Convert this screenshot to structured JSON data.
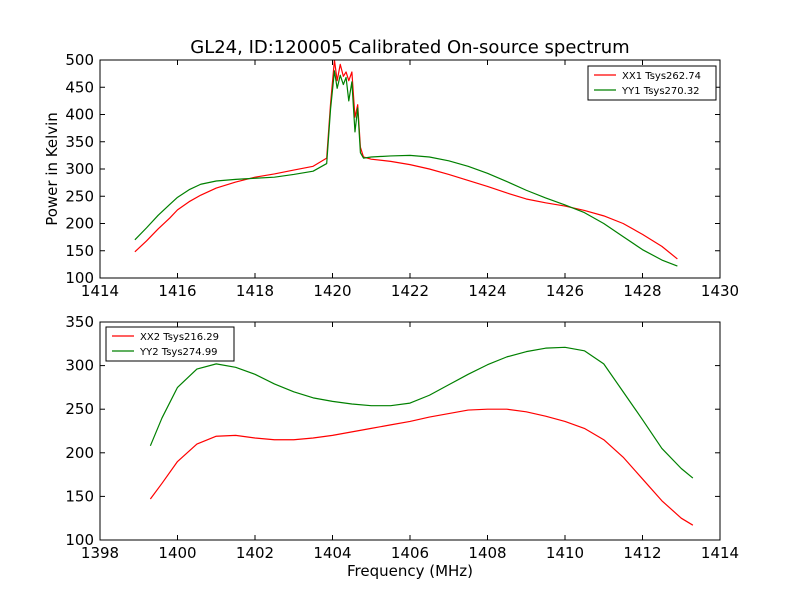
{
  "figure_title": "GL24, ID:120005 Calibrated On-source spectrum",
  "chart_data": [
    {
      "type": "line",
      "title": "GL24, ID:120005 Calibrated On-source spectrum",
      "xlabel": "",
      "ylabel": "Power in Kelvin",
      "xlim": [
        1414,
        1430
      ],
      "ylim": [
        100,
        500
      ],
      "xticks": [
        1414,
        1416,
        1418,
        1420,
        1422,
        1424,
        1426,
        1428,
        1430
      ],
      "yticks": [
        100,
        150,
        200,
        250,
        300,
        350,
        400,
        450,
        500
      ],
      "grid": false,
      "legend_position": "top-right",
      "series": [
        {
          "name": "XX1 Tsys262.74",
          "color": "#ff0000",
          "x": [
            1414.9,
            1415.2,
            1415.5,
            1415.8,
            1416.0,
            1416.3,
            1416.6,
            1417.0,
            1417.5,
            1418.0,
            1418.5,
            1419.0,
            1419.5,
            1419.85,
            1419.95,
            1420.05,
            1420.12,
            1420.2,
            1420.28,
            1420.35,
            1420.42,
            1420.5,
            1420.58,
            1420.65,
            1420.72,
            1420.8,
            1421.0,
            1421.5,
            1422.0,
            1422.5,
            1423.0,
            1423.5,
            1424.0,
            1424.5,
            1425.0,
            1425.5,
            1426.0,
            1426.5,
            1427.0,
            1427.5,
            1428.0,
            1428.5,
            1428.9
          ],
          "values": [
            148,
            168,
            190,
            210,
            225,
            240,
            252,
            265,
            276,
            285,
            291,
            298,
            305,
            320,
            420,
            500,
            462,
            492,
            470,
            478,
            462,
            478,
            395,
            418,
            340,
            322,
            318,
            314,
            308,
            300,
            290,
            279,
            268,
            256,
            245,
            238,
            232,
            224,
            214,
            200,
            180,
            158,
            135
          ]
        },
        {
          "name": "YY1 Tsys270.32",
          "color": "#008000",
          "x": [
            1414.9,
            1415.2,
            1415.5,
            1415.8,
            1416.0,
            1416.3,
            1416.6,
            1417.0,
            1417.5,
            1418.0,
            1418.5,
            1419.0,
            1419.5,
            1419.85,
            1419.95,
            1420.05,
            1420.12,
            1420.2,
            1420.28,
            1420.35,
            1420.42,
            1420.5,
            1420.58,
            1420.65,
            1420.72,
            1420.8,
            1421.0,
            1421.5,
            1422.0,
            1422.5,
            1423.0,
            1423.5,
            1424.0,
            1424.5,
            1425.0,
            1425.5,
            1426.0,
            1426.5,
            1427.0,
            1427.5,
            1428.0,
            1428.5,
            1428.9
          ],
          "values": [
            170,
            192,
            215,
            235,
            248,
            262,
            272,
            278,
            281,
            283,
            285,
            290,
            296,
            310,
            410,
            480,
            448,
            472,
            455,
            468,
            425,
            460,
            368,
            412,
            330,
            320,
            322,
            324,
            325,
            322,
            315,
            305,
            292,
            277,
            261,
            247,
            234,
            220,
            200,
            176,
            152,
            133,
            122
          ]
        }
      ]
    },
    {
      "type": "line",
      "title": "",
      "xlabel": "Frequency (MHz)",
      "ylabel": "",
      "xlim": [
        1398,
        1414
      ],
      "ylim": [
        100,
        350
      ],
      "xticks": [
        1398,
        1400,
        1402,
        1404,
        1406,
        1408,
        1410,
        1412,
        1414
      ],
      "yticks": [
        100,
        150,
        200,
        250,
        300,
        350
      ],
      "grid": false,
      "legend_position": "top-left",
      "series": [
        {
          "name": "XX2 Tsys216.29",
          "color": "#ff0000",
          "x": [
            1399.3,
            1399.6,
            1400.0,
            1400.5,
            1401.0,
            1401.5,
            1402.0,
            1402.5,
            1403.0,
            1403.5,
            1404.0,
            1404.5,
            1405.0,
            1405.5,
            1406.0,
            1406.5,
            1407.0,
            1407.5,
            1408.0,
            1408.5,
            1409.0,
            1409.5,
            1410.0,
            1410.5,
            1411.0,
            1411.5,
            1412.0,
            1412.5,
            1413.0,
            1413.3
          ],
          "values": [
            147,
            165,
            190,
            210,
            219,
            220,
            217,
            215,
            215,
            217,
            220,
            224,
            228,
            232,
            236,
            241,
            245,
            249,
            250,
            250,
            247,
            242,
            236,
            228,
            215,
            195,
            170,
            145,
            125,
            117
          ]
        },
        {
          "name": "YY2 Tsys274.99",
          "color": "#008000",
          "x": [
            1399.3,
            1399.6,
            1400.0,
            1400.5,
            1401.0,
            1401.5,
            1402.0,
            1402.5,
            1403.0,
            1403.5,
            1404.0,
            1404.5,
            1405.0,
            1405.5,
            1406.0,
            1406.5,
            1407.0,
            1407.5,
            1408.0,
            1408.5,
            1409.0,
            1409.5,
            1410.0,
            1410.5,
            1411.0,
            1411.5,
            1412.0,
            1412.5,
            1413.0,
            1413.3
          ],
          "values": [
            208,
            240,
            275,
            296,
            302,
            298,
            290,
            279,
            270,
            263,
            259,
            256,
            254,
            254,
            257,
            266,
            278,
            290,
            301,
            310,
            316,
            320,
            321,
            317,
            302,
            270,
            238,
            205,
            182,
            171
          ]
        }
      ]
    }
  ]
}
